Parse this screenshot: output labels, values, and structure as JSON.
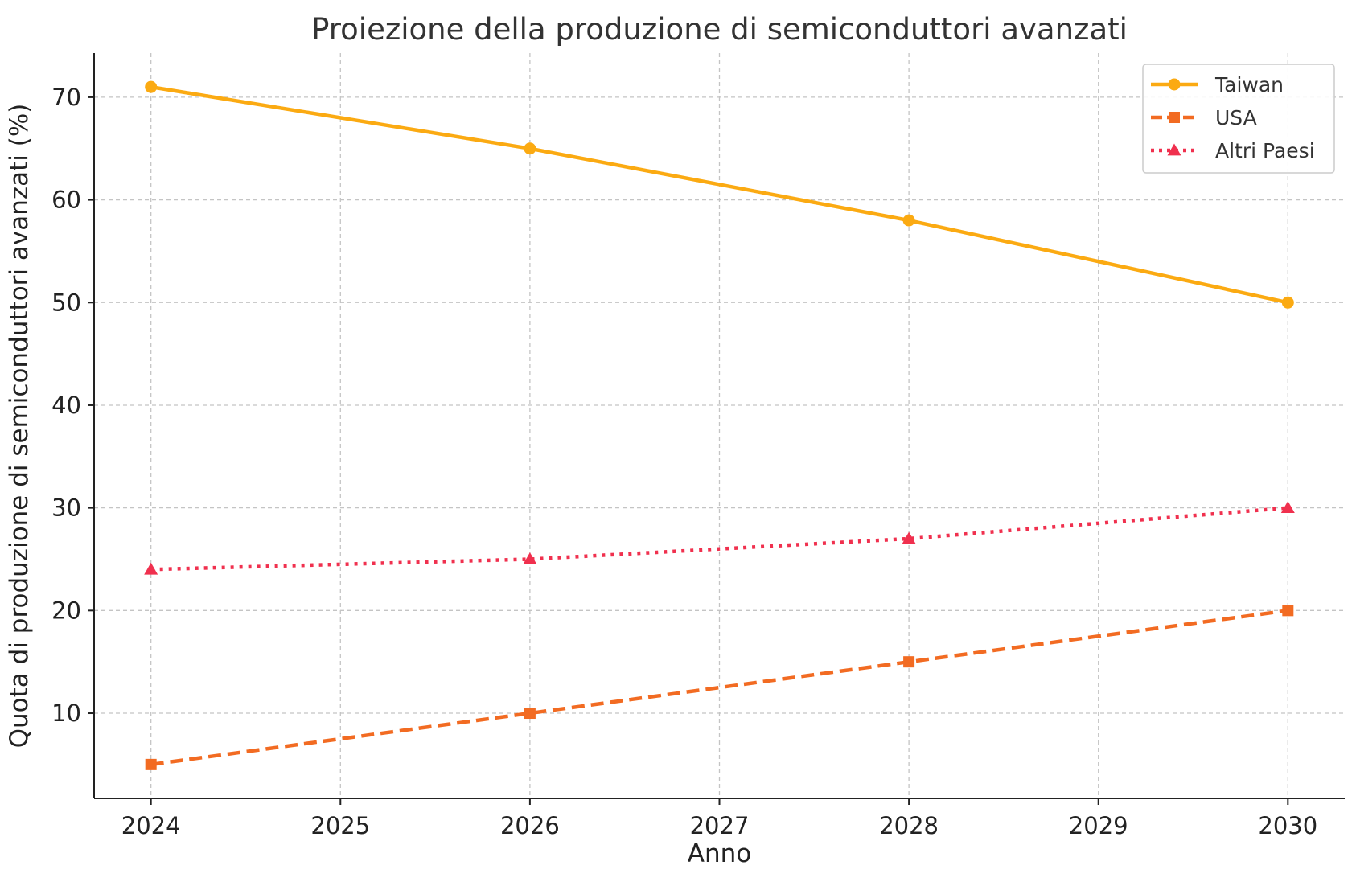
{
  "chart_data": {
    "type": "line",
    "title": "Proiezione della produzione di semiconduttori avanzati",
    "xlabel": "Anno",
    "ylabel": "Quota di produzione di semiconduttori avanzati (%)",
    "x": [
      2024,
      2026,
      2028,
      2030
    ],
    "x_ticks": [
      2024,
      2025,
      2026,
      2027,
      2028,
      2029,
      2030
    ],
    "y_ticks": [
      10,
      20,
      30,
      40,
      50,
      60,
      70
    ],
    "xlim": [
      2023.7,
      2030.3
    ],
    "ylim": [
      1.7,
      74.3
    ],
    "grid": true,
    "legend_position": "top-right",
    "series": [
      {
        "name": "Taiwan",
        "values": [
          71,
          65,
          58,
          50
        ],
        "color": "#FBAA12",
        "marker": "circle",
        "line_style": "solid"
      },
      {
        "name": "USA",
        "values": [
          5,
          10,
          15,
          20
        ],
        "color": "#F26B22",
        "marker": "square",
        "line_style": "dashed"
      },
      {
        "name": "Altri Paesi",
        "values": [
          24,
          25,
          27,
          30
        ],
        "color": "#F0304E",
        "marker": "triangle",
        "line_style": "dotted"
      }
    ]
  }
}
